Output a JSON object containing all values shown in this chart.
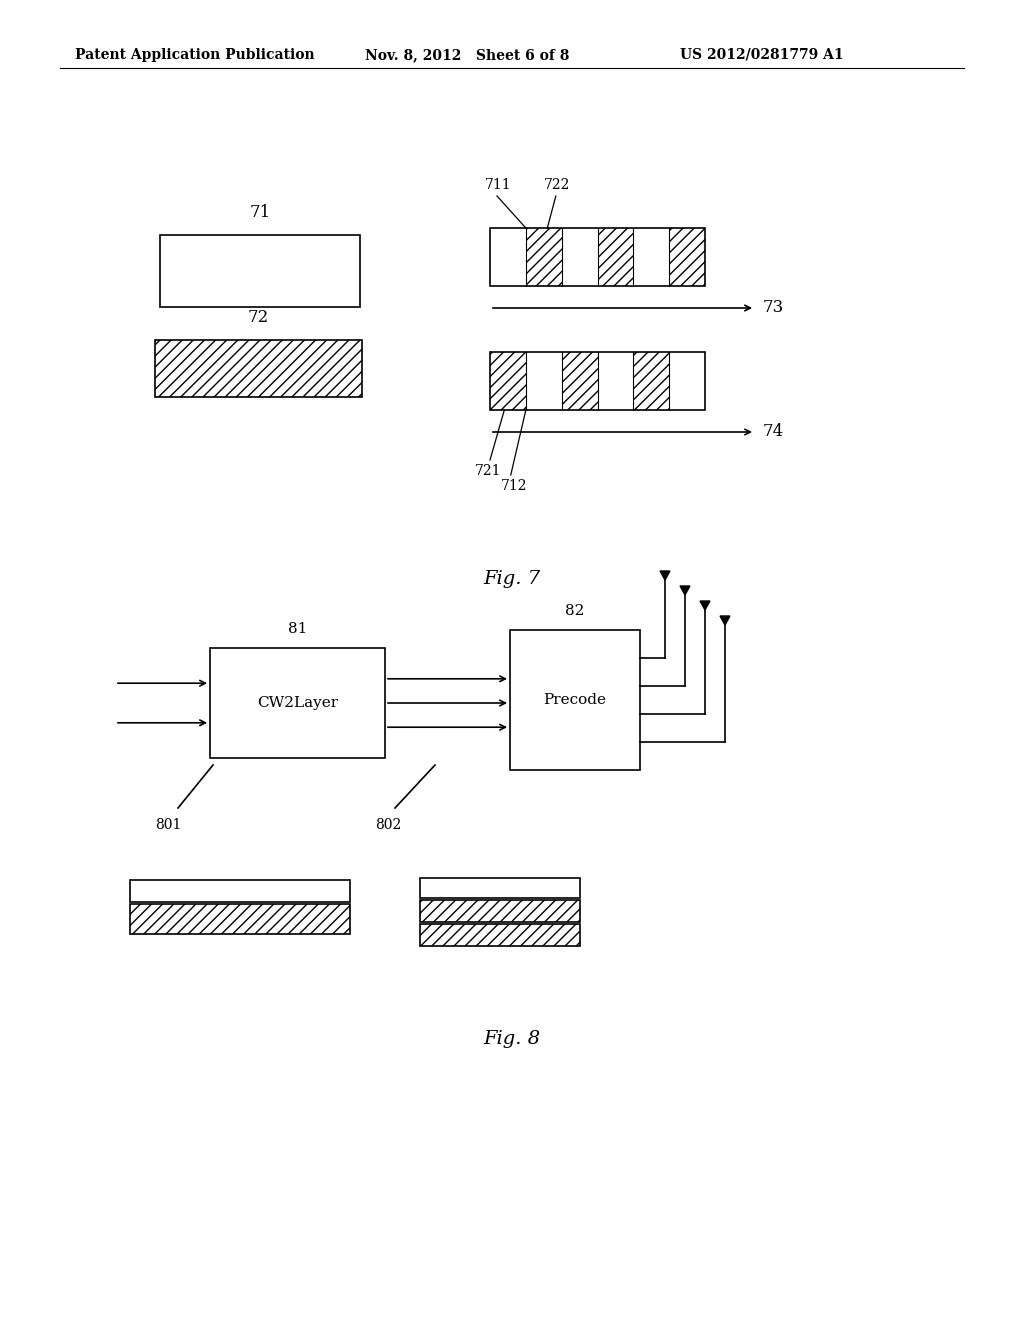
{
  "bg_color": "#ffffff",
  "header_left": "Patent Application Publication",
  "header_mid": "Nov. 8, 2012   Sheet 6 of 8",
  "header_right": "US 2012/0281779 A1",
  "fig7_caption": "Fig. 7",
  "fig8_caption": "Fig. 8",
  "label_71": "71",
  "label_72": "72",
  "label_73": "73",
  "label_74": "74",
  "label_711": "711",
  "label_712": "712",
  "label_721": "721",
  "label_722": "722",
  "label_81": "81",
  "label_82": "82",
  "label_801": "801",
  "label_802": "802",
  "box81_label": "CW2Layer",
  "box82_label": "Precode",
  "hatch_pattern": "///",
  "line_color": "#000000"
}
